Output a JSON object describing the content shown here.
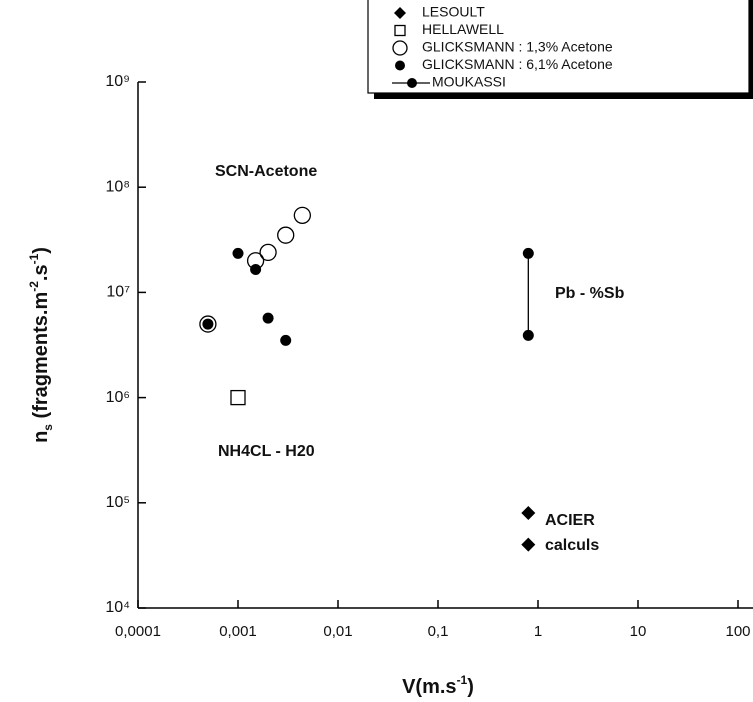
{
  "chart_data": {
    "type": "scatter",
    "xlabel_parts": [
      "V(m.s",
      "-1",
      ")"
    ],
    "ylabel_parts": [
      "n",
      "s",
      " (fragments.m",
      "-2",
      ".s",
      "-1",
      ")"
    ],
    "xscale": "log",
    "yscale": "log",
    "xlim": [
      0.0001,
      100
    ],
    "ylim": [
      10000,
      1000000000
    ],
    "xticks": [
      {
        "value": 0.0001,
        "label": "0,0001"
      },
      {
        "value": 0.001,
        "label": "0,001"
      },
      {
        "value": 0.01,
        "label": "0,01"
      },
      {
        "value": 0.1,
        "label": "0,1"
      },
      1,
      10,
      100
    ],
    "yticks": [
      {
        "value": 10000,
        "label": "10⁴"
      },
      {
        "value": 100000,
        "label": "10⁵"
      },
      {
        "value": 1000000,
        "label": "10⁶"
      },
      {
        "value": 10000000,
        "label": "10⁷"
      },
      {
        "value": 100000000,
        "label": "10⁸"
      },
      {
        "value": 1000000000,
        "label": "10⁹"
      }
    ],
    "legend": "upper right",
    "series": [
      {
        "name": "LESOULT",
        "marker": "diamond",
        "color": "#000000",
        "x": [
          0.8,
          0.8
        ],
        "values": [
          80000,
          40000
        ]
      },
      {
        "name": "HELLAWELL",
        "marker": "square",
        "color": "#000000",
        "x": [
          0.001
        ],
        "values": [
          1000000
        ]
      },
      {
        "name": "GLICKSMANN : 1,3% Acetone",
        "marker": "open-circle",
        "color": "#000000",
        "x": [
          0.0005,
          0.0015,
          0.002,
          0.003,
          0.0044
        ],
        "values": [
          5000000,
          20000000,
          24000000,
          35000000,
          54000000
        ]
      },
      {
        "name": "GLICKSMANN : 6,1% Acetone",
        "marker": "dot",
        "color": "#000000",
        "x": [
          0.0005,
          0.001,
          0.0015,
          0.002,
          0.003
        ],
        "values": [
          5000000,
          23500000,
          16500000,
          5700000,
          3500000
        ]
      },
      {
        "name": "MOUKASSI",
        "marker": "line-dot",
        "color": "#000000",
        "x": [
          0.8,
          0.8
        ],
        "values": [
          23500000,
          3900000
        ]
      }
    ],
    "annotations": [
      "SCN-Acetone",
      "Pb - %Sb",
      "NH4CL - H20",
      "ACIER",
      "calculs"
    ]
  }
}
